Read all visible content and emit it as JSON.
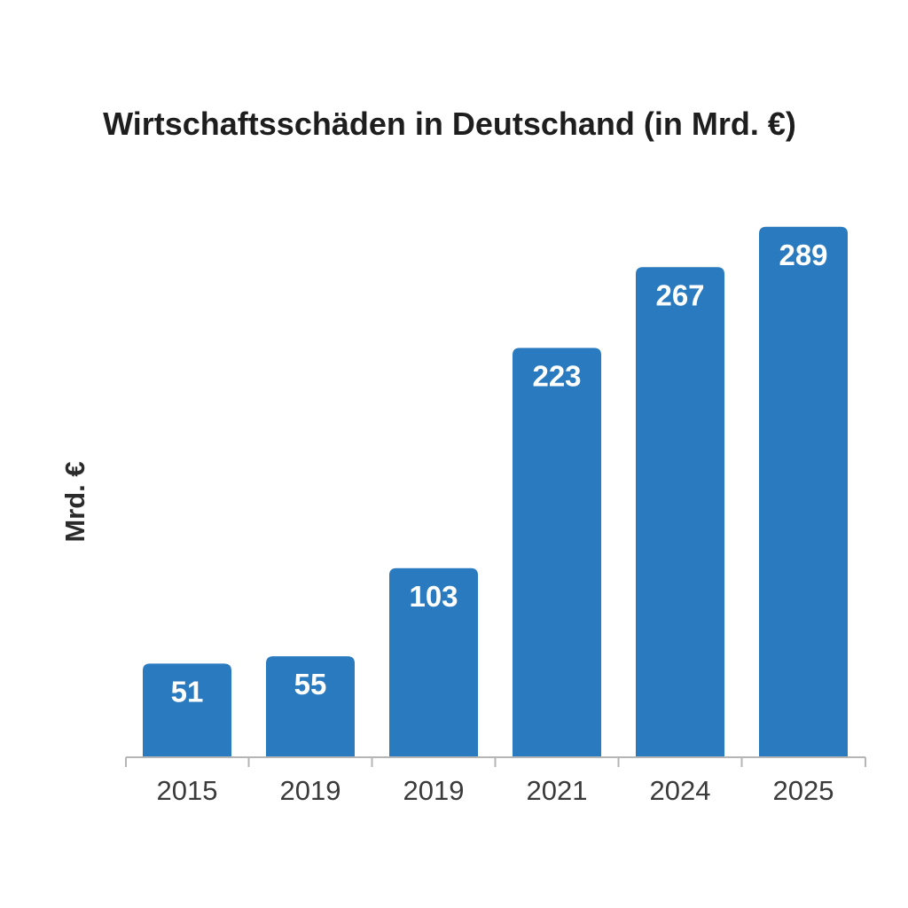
{
  "chart_data": {
    "type": "bar",
    "title": "Wirtschaftsschäden in Deutschand (in Mrd. €)",
    "xlabel": "",
    "ylabel": "Mrd. €",
    "categories": [
      "2015",
      "2019",
      "2019",
      "2021",
      "2024",
      "2025"
    ],
    "values": [
      51,
      55,
      103,
      223,
      267,
      289
    ],
    "data_labels": [
      "51",
      "55",
      "103",
      "223",
      "267",
      "289"
    ],
    "grid": false,
    "legend": "none",
    "colors": {
      "bar": "#2a7abf",
      "axis": "#b5b5b5"
    }
  }
}
